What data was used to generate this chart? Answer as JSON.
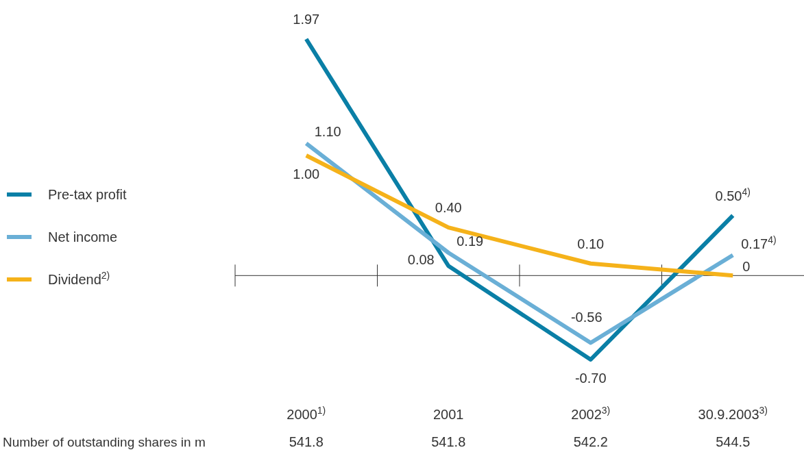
{
  "chart_data": {
    "type": "line",
    "categories": [
      "2000$^{1)}$",
      "2001",
      "2002$^{3)}$",
      "30.9.2003$^{3)}$"
    ],
    "series": [
      {
        "name": "Pre-tax profit",
        "color": "#0a7fa6",
        "values": [
          1.97,
          0.08,
          -0.7,
          0.5
        ],
        "value_labels": [
          "1.97",
          "0.08",
          "-0.70",
          "0.50$^{4)}$"
        ]
      },
      {
        "name": "Net income",
        "color": "#6aafd6",
        "values": [
          1.1,
          0.19,
          -0.56,
          0.17
        ],
        "value_labels": [
          "1.10",
          "0.19",
          "-0.56",
          "0.17$^{4)}$"
        ]
      },
      {
        "name": "Dividend$^{2)}$",
        "color": "#f5b21a",
        "values": [
          1.0,
          0.4,
          0.1,
          0
        ],
        "value_labels": [
          "1.00",
          "0.40",
          "0.10",
          "0"
        ]
      }
    ],
    "legend": "left",
    "grid": false,
    "marker": "none",
    "line_style": "solid",
    "annotations": [
      "Number of outstanding shares in m",
      "541.8",
      "541.8",
      "542.2",
      "544.5"
    ]
  }
}
